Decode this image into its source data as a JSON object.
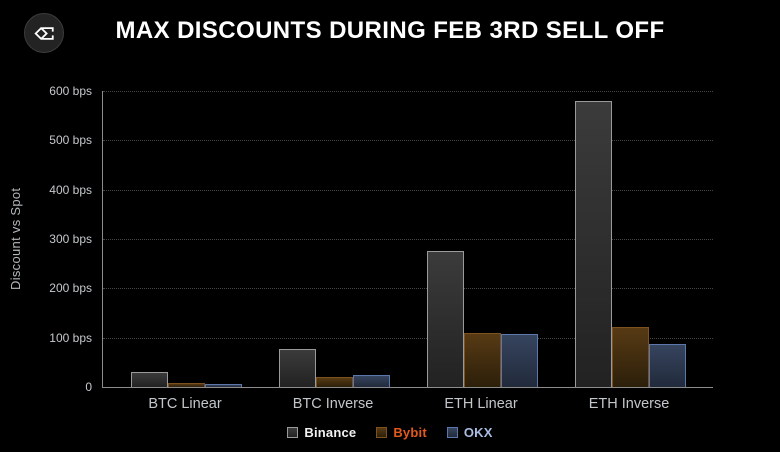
{
  "logo": {
    "icon": "sigma-diamond-logo-icon"
  },
  "colors": {
    "background": "#000000",
    "title_text": "#ffffff",
    "axis_line": "#8c8c8c",
    "gridline": "#454545",
    "tick_text": "#c6c9cc"
  },
  "chart_data": {
    "type": "bar",
    "title": "MAX DISCOUNTS DURING FEB 3RD SELL OFF",
    "xlabel": "",
    "ylabel": "Discount vs Spot",
    "unit": "bps",
    "ylim": [
      0,
      600
    ],
    "grid": "horizontal-dotted",
    "legend_position": "bottom",
    "categories": [
      "BTC Linear",
      "BTC Inverse",
      "ETH Linear",
      "ETH Inverse"
    ],
    "series": [
      {
        "name": "Binance",
        "values": [
          31,
          77,
          275,
          580
        ],
        "fill_top": "#3b3b3b",
        "fill_bottom": "#222222",
        "border": "#9a9a9c",
        "legend_text_color": "#f2f2f2"
      },
      {
        "name": "Bybit",
        "values": [
          9,
          21,
          110,
          122
        ],
        "fill_top": "#573a14",
        "fill_bottom": "#2c1f0a",
        "border": "#7d521e",
        "legend_text_color": "#e45a1d"
      },
      {
        "name": "OKX",
        "values": [
          6,
          24,
          108,
          87
        ],
        "fill_top": "#36445e",
        "fill_bottom": "#212a3b",
        "border": "#5c77ab",
        "legend_text_color": "#aabde4"
      }
    ],
    "yticks": [
      {
        "label": "600 bps",
        "value": 600
      },
      {
        "label": "500 bps",
        "value": 500
      },
      {
        "label": "400 bps",
        "value": 400
      },
      {
        "label": "300 bps",
        "value": 300
      },
      {
        "label": "200 bps",
        "value": 200
      },
      {
        "label": "100 bps",
        "value": 100
      },
      {
        "label": "0",
        "value": 0
      }
    ]
  }
}
